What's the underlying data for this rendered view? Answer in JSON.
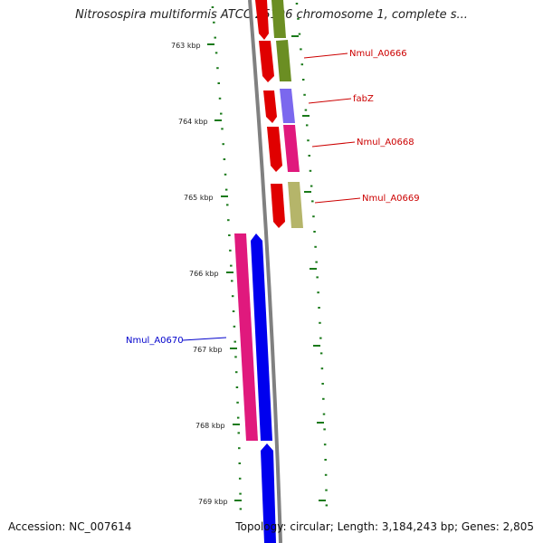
{
  "title": "Nitrosospira multiformis ATCC 25196 chromosome 1, complete s...",
  "accession": "Accession: NC_007614",
  "topology": "Topology: circular; Length: 3,184,243 bp; Genes: 2,805",
  "colors": {
    "backbone": "#808080",
    "tick": "#1a7a1a",
    "label_red": "#cc0000",
    "label_blue": "#0000cc"
  },
  "ticks": [
    {
      "label": "763 kbp"
    },
    {
      "label": "764 kbp"
    },
    {
      "label": "765 kbp"
    },
    {
      "label": "766 kbp"
    },
    {
      "label": "767 kbp"
    },
    {
      "label": "768 kbp"
    },
    {
      "label": "769 kbp"
    }
  ],
  "gene_labels": [
    {
      "name": "Nmul_A0666",
      "color": "#cc0000"
    },
    {
      "name": "fabZ",
      "color": "#cc0000"
    },
    {
      "name": "Nmul_A0668",
      "color": "#cc0000"
    },
    {
      "name": "Nmul_A0669",
      "color": "#cc0000"
    },
    {
      "name": "Nmul_A0670",
      "color": "#0000cc"
    }
  ]
}
